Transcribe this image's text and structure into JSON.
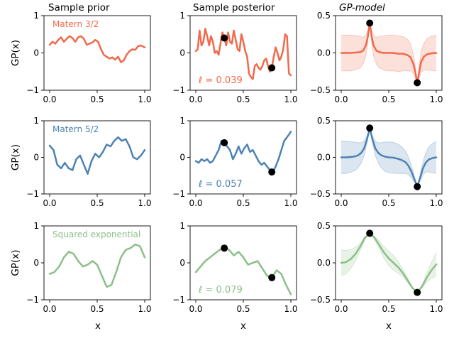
{
  "figure": {
    "column_titles": [
      "Sample prior",
      "Sample posterior",
      "GP-model"
    ],
    "xlabel": "x",
    "ylabel": "GP(x)"
  },
  "chart_data": [
    {
      "type": "line",
      "title": "Sample prior",
      "kernel_label": "Matern 3/2",
      "color": "#f2694a",
      "xlim": [
        0,
        1
      ],
      "ylim": [
        -1,
        1
      ],
      "yticks": [
        -1,
        0,
        1
      ],
      "xticks": [
        0.0,
        0.5,
        1.0
      ],
      "ylabel": "GP(x)",
      "x": [
        0.0,
        0.03,
        0.06,
        0.09,
        0.12,
        0.15,
        0.18,
        0.21,
        0.24,
        0.27,
        0.3,
        0.33,
        0.36,
        0.39,
        0.42,
        0.45,
        0.48,
        0.51,
        0.54,
        0.57,
        0.6,
        0.63,
        0.66,
        0.69,
        0.72,
        0.75,
        0.78,
        0.81,
        0.84,
        0.87,
        0.9,
        0.93,
        0.96,
        1.0
      ],
      "y": [
        0.22,
        0.3,
        0.25,
        0.35,
        0.42,
        0.3,
        0.38,
        0.45,
        0.4,
        0.3,
        0.42,
        0.45,
        0.38,
        0.22,
        0.25,
        0.28,
        0.35,
        0.3,
        0.1,
        -0.05,
        -0.1,
        -0.15,
        -0.12,
        -0.18,
        -0.1,
        -0.25,
        -0.2,
        -0.05,
        0.05,
        0.1,
        0.08,
        0.18,
        0.2,
        0.15
      ]
    },
    {
      "type": "line",
      "title": "Sample posterior",
      "ell_label": "ℓ = 0.039",
      "color": "#f2694a",
      "xlim": [
        0,
        1
      ],
      "ylim": [
        -1,
        1
      ],
      "yticks": [
        -1,
        0,
        1
      ],
      "xticks": [
        0.0,
        0.5,
        1.0
      ],
      "x": [
        0.0,
        0.02,
        0.04,
        0.06,
        0.08,
        0.1,
        0.12,
        0.14,
        0.16,
        0.18,
        0.2,
        0.22,
        0.24,
        0.26,
        0.28,
        0.3,
        0.32,
        0.34,
        0.36,
        0.38,
        0.4,
        0.42,
        0.44,
        0.46,
        0.48,
        0.5,
        0.52,
        0.54,
        0.56,
        0.58,
        0.6,
        0.62,
        0.64,
        0.66,
        0.68,
        0.7,
        0.72,
        0.74,
        0.76,
        0.78,
        0.8,
        0.82,
        0.84,
        0.86,
        0.88,
        0.9,
        0.92,
        0.94,
        0.96,
        0.98,
        1.0
      ],
      "y": [
        0.05,
        0.1,
        0.6,
        0.2,
        0.3,
        0.65,
        0.45,
        0.2,
        0.45,
        0.3,
        0.0,
        0.05,
        -0.05,
        0.25,
        0.55,
        0.4,
        0.2,
        0.55,
        0.3,
        0.25,
        0.6,
        0.35,
        0.1,
        0.05,
        0.5,
        0.3,
        0.05,
        -0.1,
        -0.55,
        -0.65,
        -0.7,
        -0.35,
        -0.3,
        -0.4,
        -0.45,
        -0.35,
        -0.2,
        -0.15,
        -0.35,
        -0.5,
        -0.4,
        -0.1,
        0.15,
        0.0,
        -0.2,
        -0.1,
        0.1,
        0.5,
        0.45,
        -0.55,
        -0.6
      ],
      "observations": [
        {
          "x": 0.3,
          "y": 0.4
        },
        {
          "x": 0.8,
          "y": -0.4
        }
      ]
    },
    {
      "type": "area",
      "title": "GP-model",
      "color": "#f2694a",
      "xlim": [
        0,
        1
      ],
      "ylim": [
        -0.5,
        0.5
      ],
      "yticks": [
        -0.5,
        0.0,
        0.5
      ],
      "xticks": [
        0.0,
        0.5,
        1.0
      ],
      "x": [
        0.0,
        0.05,
        0.1,
        0.15,
        0.2,
        0.23,
        0.26,
        0.28,
        0.3,
        0.32,
        0.34,
        0.37,
        0.4,
        0.45,
        0.5,
        0.55,
        0.6,
        0.65,
        0.7,
        0.73,
        0.76,
        0.78,
        0.8,
        0.82,
        0.84,
        0.87,
        0.9,
        0.95,
        1.0
      ],
      "mean": [
        0.0,
        0.0,
        0.0,
        0.005,
        0.01,
        0.03,
        0.1,
        0.22,
        0.4,
        0.22,
        0.1,
        0.03,
        0.01,
        0.0,
        0.0,
        0.0,
        -0.01,
        -0.01,
        -0.03,
        -0.06,
        -0.15,
        -0.26,
        -0.4,
        -0.26,
        -0.12,
        -0.05,
        -0.02,
        -0.005,
        0.0
      ],
      "std": [
        0.24,
        0.24,
        0.24,
        0.23,
        0.21,
        0.18,
        0.14,
        0.09,
        0.0,
        0.09,
        0.14,
        0.18,
        0.21,
        0.23,
        0.24,
        0.24,
        0.24,
        0.23,
        0.21,
        0.18,
        0.13,
        0.08,
        0.0,
        0.08,
        0.14,
        0.18,
        0.21,
        0.23,
        0.24
      ],
      "observations": [
        {
          "x": 0.3,
          "y": 0.4
        },
        {
          "x": 0.8,
          "y": -0.4
        }
      ]
    },
    {
      "type": "line",
      "title": "Sample prior",
      "kernel_label": "Matern 5/2",
      "color": "#4c82b4",
      "xlim": [
        0,
        1
      ],
      "ylim": [
        -1,
        1
      ],
      "yticks": [
        -1,
        0,
        1
      ],
      "xticks": [
        0.0,
        0.5,
        1.0
      ],
      "ylabel": "GP(x)",
      "x": [
        0.0,
        0.04,
        0.08,
        0.12,
        0.16,
        0.2,
        0.24,
        0.28,
        0.32,
        0.36,
        0.4,
        0.44,
        0.48,
        0.52,
        0.56,
        0.6,
        0.64,
        0.68,
        0.72,
        0.76,
        0.8,
        0.84,
        0.88,
        0.92,
        0.96,
        1.0
      ],
      "y": [
        0.32,
        0.2,
        -0.2,
        -0.3,
        -0.15,
        -0.3,
        -0.35,
        -0.05,
        0.05,
        -0.2,
        -0.45,
        -0.1,
        0.1,
        0.0,
        0.15,
        0.35,
        0.3,
        0.45,
        0.55,
        0.45,
        0.5,
        0.3,
        0.0,
        -0.05,
        0.05,
        0.2
      ]
    },
    {
      "type": "line",
      "title": "Sample posterior",
      "ell_label": "ℓ = 0.057",
      "color": "#4c82b4",
      "xlim": [
        0,
        1
      ],
      "ylim": [
        -1,
        1
      ],
      "yticks": [
        -1,
        0,
        1
      ],
      "xticks": [
        0.0,
        0.5,
        1.0
      ],
      "x": [
        0.0,
        0.03,
        0.06,
        0.09,
        0.12,
        0.15,
        0.18,
        0.21,
        0.24,
        0.27,
        0.3,
        0.33,
        0.36,
        0.39,
        0.42,
        0.45,
        0.48,
        0.51,
        0.54,
        0.57,
        0.6,
        0.63,
        0.66,
        0.69,
        0.72,
        0.75,
        0.78,
        0.81,
        0.84,
        0.87,
        0.9,
        0.93,
        0.96,
        1.0
      ],
      "y": [
        -0.1,
        -0.15,
        -0.05,
        -0.1,
        -0.05,
        -0.15,
        -0.1,
        0.05,
        0.2,
        0.45,
        0.4,
        0.3,
        0.2,
        -0.05,
        0.1,
        0.3,
        0.1,
        0.25,
        0.35,
        0.15,
        0.2,
        0.05,
        -0.1,
        -0.2,
        -0.15,
        -0.25,
        -0.35,
        -0.4,
        -0.25,
        -0.05,
        0.2,
        0.45,
        0.55,
        0.7
      ],
      "observations": [
        {
          "x": 0.3,
          "y": 0.4
        },
        {
          "x": 0.8,
          "y": -0.4
        }
      ]
    },
    {
      "type": "area",
      "title": "GP-model",
      "color": "#4c82b4",
      "xlim": [
        0,
        1
      ],
      "ylim": [
        -0.5,
        0.5
      ],
      "yticks": [
        -0.5,
        0.0,
        0.5
      ],
      "xticks": [
        0.0,
        0.5,
        1.0
      ],
      "x": [
        0.0,
        0.05,
        0.1,
        0.15,
        0.18,
        0.21,
        0.24,
        0.27,
        0.3,
        0.33,
        0.36,
        0.39,
        0.42,
        0.46,
        0.5,
        0.55,
        0.6,
        0.64,
        0.68,
        0.71,
        0.74,
        0.77,
        0.8,
        0.83,
        0.86,
        0.89,
        0.92,
        0.96,
        1.0
      ],
      "mean": [
        0.0,
        0.0,
        0.005,
        0.015,
        0.03,
        0.06,
        0.12,
        0.24,
        0.4,
        0.24,
        0.12,
        0.06,
        0.03,
        0.01,
        0.0,
        -0.005,
        -0.02,
        -0.04,
        -0.07,
        -0.12,
        -0.2,
        -0.3,
        -0.4,
        -0.28,
        -0.15,
        -0.07,
        -0.03,
        -0.01,
        0.0
      ],
      "std": [
        0.22,
        0.22,
        0.21,
        0.19,
        0.17,
        0.14,
        0.1,
        0.05,
        0.0,
        0.05,
        0.1,
        0.14,
        0.17,
        0.2,
        0.21,
        0.21,
        0.2,
        0.18,
        0.15,
        0.12,
        0.08,
        0.04,
        0.0,
        0.04,
        0.09,
        0.13,
        0.17,
        0.2,
        0.22
      ],
      "observations": [
        {
          "x": 0.3,
          "y": 0.4
        },
        {
          "x": 0.8,
          "y": -0.4
        }
      ]
    },
    {
      "type": "line",
      "title": "Sample prior",
      "kernel_label": "Squared exponential",
      "color": "#8cbf88",
      "xlim": [
        0,
        1
      ],
      "ylim": [
        -1,
        1
      ],
      "yticks": [
        -1,
        0,
        1
      ],
      "xticks": [
        0.0,
        0.5,
        1.0
      ],
      "ylabel": "GP(x)",
      "x": [
        0.0,
        0.05,
        0.1,
        0.15,
        0.2,
        0.25,
        0.3,
        0.35,
        0.4,
        0.45,
        0.5,
        0.55,
        0.6,
        0.65,
        0.7,
        0.75,
        0.8,
        0.85,
        0.9,
        0.95,
        1.0
      ],
      "y": [
        -0.3,
        -0.25,
        -0.1,
        0.15,
        0.3,
        0.25,
        0.05,
        -0.1,
        -0.05,
        0.05,
        -0.05,
        -0.35,
        -0.65,
        -0.6,
        -0.25,
        0.15,
        0.35,
        0.4,
        0.5,
        0.45,
        0.15
      ]
    },
    {
      "type": "line",
      "title": "Sample posterior",
      "ell_label": "ℓ = 0.079",
      "color": "#8cbf88",
      "xlim": [
        0,
        1
      ],
      "ylim": [
        -1,
        1
      ],
      "yticks": [
        -1,
        0,
        1
      ],
      "xticks": [
        0.0,
        0.5,
        1.0
      ],
      "x": [
        0.0,
        0.05,
        0.1,
        0.15,
        0.2,
        0.25,
        0.3,
        0.35,
        0.4,
        0.45,
        0.5,
        0.55,
        0.6,
        0.65,
        0.7,
        0.75,
        0.8,
        0.85,
        0.9,
        0.95,
        1.0
      ],
      "y": [
        -0.25,
        -0.1,
        0.05,
        0.15,
        0.25,
        0.35,
        0.4,
        0.35,
        0.2,
        0.3,
        0.15,
        -0.05,
        0.0,
        0.05,
        -0.15,
        -0.35,
        -0.4,
        -0.2,
        -0.3,
        -0.6,
        -0.85
      ],
      "observations": [
        {
          "x": 0.3,
          "y": 0.4
        },
        {
          "x": 0.8,
          "y": -0.4
        }
      ]
    },
    {
      "type": "area",
      "title": "GP-model",
      "color": "#8cbf88",
      "xlim": [
        0,
        1
      ],
      "ylim": [
        -0.5,
        0.5
      ],
      "yticks": [
        -0.5,
        0.0,
        0.5
      ],
      "xticks": [
        0.0,
        0.5,
        1.0
      ],
      "x": [
        0.0,
        0.05,
        0.1,
        0.15,
        0.2,
        0.25,
        0.3,
        0.35,
        0.4,
        0.45,
        0.5,
        0.55,
        0.6,
        0.65,
        0.7,
        0.75,
        0.8,
        0.85,
        0.9,
        0.95,
        1.0
      ],
      "mean": [
        0.0,
        0.01,
        0.05,
        0.12,
        0.22,
        0.34,
        0.4,
        0.34,
        0.24,
        0.14,
        0.06,
        0.0,
        -0.06,
        -0.14,
        -0.24,
        -0.34,
        -0.4,
        -0.32,
        -0.2,
        -0.1,
        -0.02
      ],
      "std": [
        0.17,
        0.16,
        0.13,
        0.09,
        0.05,
        0.02,
        0.0,
        0.02,
        0.05,
        0.08,
        0.1,
        0.1,
        0.08,
        0.05,
        0.03,
        0.01,
        0.0,
        0.02,
        0.06,
        0.11,
        0.16
      ],
      "observations": [
        {
          "x": 0.3,
          "y": 0.4
        },
        {
          "x": 0.8,
          "y": -0.4
        }
      ]
    }
  ]
}
